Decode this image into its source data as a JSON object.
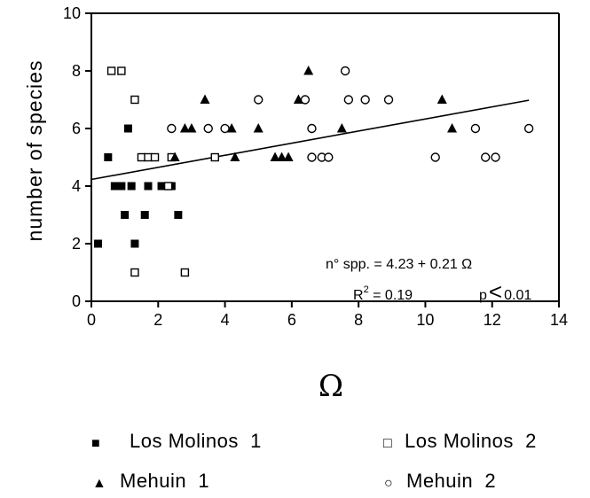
{
  "chart_data": {
    "type": "scatter",
    "title": "",
    "xlabel": "Ω",
    "ylabel": "number of species",
    "xlim": [
      0,
      14
    ],
    "ylim": [
      0,
      10
    ],
    "xticks": [
      0,
      2,
      4,
      6,
      8,
      10,
      12,
      14
    ],
    "yticks": [
      0,
      2,
      4,
      6,
      8,
      10
    ],
    "grid": false,
    "legend_position": "bottom",
    "series": [
      {
        "name": "Los Molinos 1",
        "marker": "filled-square",
        "points": [
          [
            0.2,
            2
          ],
          [
            0.5,
            5
          ],
          [
            0.7,
            4
          ],
          [
            0.8,
            4
          ],
          [
            0.9,
            4
          ],
          [
            1.0,
            3
          ],
          [
            1.1,
            6
          ],
          [
            1.2,
            4
          ],
          [
            1.3,
            2
          ],
          [
            1.6,
            3
          ],
          [
            1.7,
            4
          ],
          [
            2.1,
            4
          ],
          [
            2.2,
            4
          ],
          [
            2.4,
            4
          ],
          [
            2.6,
            3
          ]
        ]
      },
      {
        "name": "Los Molinos 2",
        "marker": "open-square",
        "points": [
          [
            0.6,
            8
          ],
          [
            0.9,
            8
          ],
          [
            1.3,
            7
          ],
          [
            1.3,
            1
          ],
          [
            1.5,
            5
          ],
          [
            1.7,
            5
          ],
          [
            1.9,
            5
          ],
          [
            2.3,
            4
          ],
          [
            2.4,
            5
          ],
          [
            2.8,
            1
          ],
          [
            3.7,
            5
          ]
        ]
      },
      {
        "name": "Mehuín 1",
        "marker": "filled-triangle",
        "points": [
          [
            2.5,
            5
          ],
          [
            2.8,
            6
          ],
          [
            3.0,
            6
          ],
          [
            3.4,
            7
          ],
          [
            4.2,
            6
          ],
          [
            4.3,
            5
          ],
          [
            5.0,
            6
          ],
          [
            5.5,
            5
          ],
          [
            5.7,
            5
          ],
          [
            5.9,
            5
          ],
          [
            6.2,
            7
          ],
          [
            6.5,
            8
          ],
          [
            7.5,
            6
          ],
          [
            10.5,
            7
          ],
          [
            10.8,
            6
          ]
        ]
      },
      {
        "name": "Mehuín 2",
        "marker": "open-circle",
        "points": [
          [
            2.4,
            6
          ],
          [
            3.5,
            6
          ],
          [
            4.0,
            6
          ],
          [
            5.0,
            7
          ],
          [
            6.4,
            7
          ],
          [
            6.6,
            6
          ],
          [
            6.6,
            5
          ],
          [
            6.9,
            5
          ],
          [
            7.1,
            5
          ],
          [
            7.6,
            8
          ],
          [
            7.7,
            7
          ],
          [
            8.2,
            7
          ],
          [
            8.9,
            7
          ],
          [
            10.3,
            5
          ],
          [
            11.5,
            6
          ],
          [
            11.8,
            5
          ],
          [
            12.1,
            5
          ],
          [
            13.1,
            6
          ]
        ]
      }
    ],
    "regression": {
      "intercept": 4.23,
      "slope": 0.21,
      "x_range": [
        0,
        13.1
      ]
    },
    "annotations": [
      "n° spp. = 4.23 + 0.21 Ω",
      "R",
      "2",
      " = 0.19",
      "p",
      "<",
      "0.01"
    ],
    "legend": [
      {
        "marker": "■",
        "label": "Los Molinos  1"
      },
      {
        "marker": "□",
        "label": "Los Molinos  2"
      },
      {
        "marker": "▲",
        "label": "Mehuin  1"
      },
      {
        "marker": "○",
        "label": "Mehuin  2"
      }
    ]
  }
}
